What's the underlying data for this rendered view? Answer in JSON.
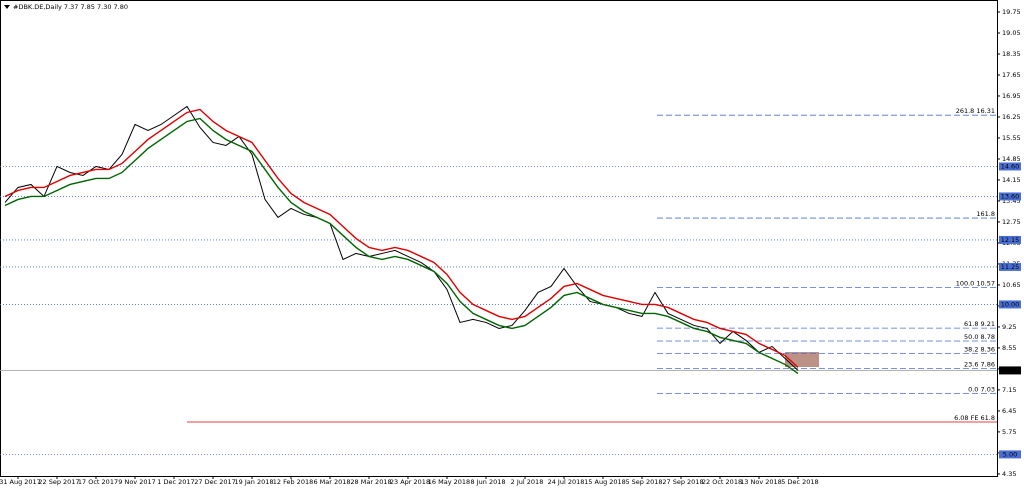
{
  "chart_data": {
    "type": "line",
    "title": "#DBK.DE,Daily  7.37 7.85 7.30 7.80",
    "categories": [
      null,
      "31 Aug 2017",
      null,
      null,
      "22 Sep 2017",
      null,
      null,
      "17 Oct 2017",
      null,
      null,
      "9 Nov 2017",
      null,
      null,
      "1 Dec 2017",
      null,
      null,
      "27 Dec 2017",
      null,
      null,
      "19 Jan 2018",
      null,
      null,
      "12 Feb 2018",
      null,
      null,
      "6 Mar 2018",
      null,
      null,
      "28 Mar 2018",
      null,
      null,
      "23 Apr 2018",
      null,
      null,
      "16 May 2018",
      null,
      null,
      "8 Jun 2018",
      null,
      null,
      "2 Jul 2018",
      null,
      null,
      "24 Jul 2018",
      null,
      null,
      "15 Aug 2018",
      null,
      null,
      "5 Sep 2018",
      null,
      null,
      "27 Sep 2018",
      null,
      null,
      "22 Oct 2018",
      null,
      null,
      "13 Nov 2018",
      null,
      null,
      "5 Dec 2018"
    ],
    "series": [
      {
        "color": "#000000",
        "values": [
          13.4,
          13.9,
          14.0,
          13.6,
          14.6,
          14.4,
          14.3,
          14.6,
          14.5,
          15.0,
          16.0,
          15.8,
          16.0,
          16.3,
          16.6,
          15.9,
          15.4,
          15.3,
          15.6,
          15.0,
          13.5,
          12.9,
          13.2,
          13.0,
          12.9,
          12.7,
          11.5,
          11.7,
          11.6,
          11.7,
          11.8,
          11.6,
          11.4,
          11.1,
          10.5,
          9.4,
          9.5,
          9.4,
          9.2,
          9.3,
          9.8,
          10.4,
          10.6,
          11.2,
          10.6,
          10.1,
          10.0,
          9.9,
          9.7,
          9.6,
          10.4,
          9.7,
          9.5,
          9.3,
          9.2,
          8.7,
          9.1,
          8.8,
          8.4,
          8.6,
          8.2,
          7.8
        ]
      },
      {
        "color": "#e00000",
        "values": [
          13.6,
          13.8,
          13.9,
          13.9,
          14.1,
          14.3,
          14.4,
          14.5,
          14.5,
          14.7,
          15.1,
          15.5,
          15.8,
          16.1,
          16.4,
          16.5,
          16.1,
          15.8,
          15.6,
          15.4,
          14.8,
          14.2,
          13.7,
          13.4,
          13.2,
          13.0,
          12.6,
          12.2,
          11.9,
          11.8,
          11.9,
          11.8,
          11.6,
          11.4,
          11.0,
          10.4,
          10.0,
          9.8,
          9.6,
          9.5,
          9.6,
          9.9,
          10.2,
          10.6,
          10.7,
          10.5,
          10.3,
          10.2,
          10.1,
          10.0,
          10.0,
          9.9,
          9.7,
          9.5,
          9.4,
          9.2,
          9.1,
          9.0,
          8.7,
          8.5,
          8.3,
          7.9
        ]
      },
      {
        "color": "#006400",
        "values": [
          13.3,
          13.5,
          13.6,
          13.6,
          13.8,
          14.0,
          14.1,
          14.2,
          14.2,
          14.4,
          14.8,
          15.2,
          15.5,
          15.8,
          16.1,
          16.2,
          15.8,
          15.5,
          15.3,
          15.1,
          14.5,
          13.9,
          13.4,
          13.1,
          12.9,
          12.7,
          12.3,
          11.9,
          11.6,
          11.5,
          11.6,
          11.5,
          11.3,
          11.1,
          10.7,
          10.1,
          9.7,
          9.5,
          9.3,
          9.2,
          9.3,
          9.6,
          9.9,
          10.3,
          10.4,
          10.2,
          10.0,
          9.9,
          9.8,
          9.7,
          9.7,
          9.6,
          9.4,
          9.2,
          9.1,
          8.9,
          8.8,
          8.7,
          8.4,
          8.2,
          8.0,
          7.7
        ]
      }
    ],
    "ylim": [
      4.28,
      20.15
    ],
    "yticks": [
      19.75,
      19.05,
      18.35,
      17.65,
      16.95,
      16.25,
      15.55,
      14.85,
      14.15,
      13.45,
      12.75,
      12.05,
      11.35,
      10.65,
      9.95,
      9.25,
      8.55,
      7.85,
      7.15,
      6.45,
      5.75,
      5.05,
      4.35
    ],
    "levels": [
      {
        "value": 14.6,
        "label": "14.60"
      },
      {
        "value": 13.6,
        "label": "13.60"
      },
      {
        "value": 12.15,
        "label": "12.15"
      },
      {
        "value": 11.25,
        "label": "11.25"
      },
      {
        "value": 10.0,
        "label": "10.00"
      },
      {
        "value": 5.0,
        "label": "5.00"
      }
    ],
    "current_price": {
      "value": 7.8,
      "label": "7.80"
    },
    "fibonacci": [
      {
        "value": 16.31,
        "label": "261.8 16.31"
      },
      {
        "value": 12.88,
        "label": "161.8"
      },
      {
        "value": 10.57,
        "label": "100.0 10.57"
      },
      {
        "value": 9.21,
        "label": "61.8 9.21"
      },
      {
        "value": 8.78,
        "label": "50.0 8.78"
      },
      {
        "value": 8.36,
        "label": "38.2 8.36"
      },
      {
        "value": 7.86,
        "label": "23.6 7.86"
      },
      {
        "value": 7.03,
        "label": "0.0 7.03"
      }
    ],
    "expansion": {
      "value": 6.08,
      "label": "6.08 FE 61.8"
    }
  }
}
